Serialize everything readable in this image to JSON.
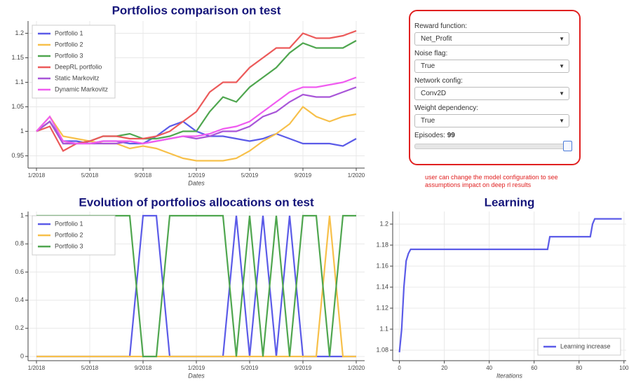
{
  "chart_data": [
    {
      "type": "line",
      "title": "Portfolios comparison on test",
      "xlabel": "Dates",
      "x": [
        "1/2018",
        "2/2018",
        "3/2018",
        "4/2018",
        "5/2018",
        "6/2018",
        "7/2018",
        "8/2018",
        "9/2018",
        "10/2018",
        "11/2018",
        "12/2018",
        "1/2019",
        "2/2019",
        "3/2019",
        "4/2019",
        "5/2019",
        "6/2019",
        "7/2019",
        "8/2019",
        "9/2019",
        "10/2019",
        "11/2019",
        "12/2019",
        "1/2020"
      ],
      "xticks": [
        "1/2018",
        "5/2018",
        "9/2018",
        "1/2019",
        "5/2019",
        "9/2019",
        "1/2020"
      ],
      "ylim": [
        0.925,
        1.225
      ],
      "yticks": [
        0.95,
        1,
        1.05,
        1.1,
        1.15,
        1.2
      ],
      "grid": true,
      "legend": "top-left",
      "series": [
        {
          "name": "Portfolio 1",
          "color": "#5b5be8",
          "values": [
            1.0,
            1.02,
            0.98,
            0.98,
            0.975,
            0.98,
            0.98,
            0.975,
            0.975,
            0.99,
            1.01,
            1.02,
            1.0,
            0.99,
            0.99,
            0.985,
            0.98,
            0.985,
            0.995,
            0.985,
            0.975,
            0.975,
            0.975,
            0.97,
            0.985
          ]
        },
        {
          "name": "Portfolio 2",
          "color": "#f7c04a",
          "values": [
            1.0,
            1.03,
            0.99,
            0.985,
            0.98,
            0.975,
            0.975,
            0.965,
            0.97,
            0.965,
            0.955,
            0.945,
            0.94,
            0.94,
            0.94,
            0.945,
            0.96,
            0.98,
            0.995,
            1.015,
            1.05,
            1.03,
            1.02,
            1.03,
            1.035
          ]
        },
        {
          "name": "Portfolio 3",
          "color": "#4fa64f",
          "values": [
            1.0,
            1.02,
            0.975,
            0.975,
            0.98,
            0.99,
            0.99,
            0.995,
            0.985,
            0.985,
            0.99,
            1.0,
            1.0,
            1.04,
            1.07,
            1.06,
            1.09,
            1.11,
            1.13,
            1.16,
            1.18,
            1.17,
            1.17,
            1.17,
            1.185
          ]
        },
        {
          "name": "DeepRL portfolio",
          "color": "#ec5a5a",
          "values": [
            1.0,
            1.01,
            0.96,
            0.975,
            0.98,
            0.99,
            0.99,
            0.985,
            0.985,
            0.99,
            1.0,
            1.02,
            1.04,
            1.08,
            1.1,
            1.1,
            1.13,
            1.15,
            1.17,
            1.17,
            1.2,
            1.19,
            1.19,
            1.195,
            1.205
          ]
        },
        {
          "name": "Static Markovitz",
          "color": "#a855d8",
          "values": [
            1.0,
            1.02,
            0.975,
            0.975,
            0.975,
            0.975,
            0.975,
            0.98,
            0.975,
            0.98,
            0.985,
            0.99,
            0.985,
            0.99,
            1.0,
            1.0,
            1.01,
            1.03,
            1.04,
            1.06,
            1.075,
            1.07,
            1.07,
            1.08,
            1.09
          ]
        },
        {
          "name": "Dynamic Markovitz",
          "color": "#f05cf0",
          "values": [
            1.0,
            1.03,
            0.98,
            0.975,
            0.975,
            0.98,
            0.98,
            0.98,
            0.975,
            0.98,
            0.985,
            0.99,
            0.99,
            0.995,
            1.005,
            1.01,
            1.02,
            1.04,
            1.06,
            1.08,
            1.09,
            1.09,
            1.095,
            1.1,
            1.11
          ]
        }
      ]
    },
    {
      "type": "line",
      "title": "Evolution of portfolios allocations on test",
      "xlabel": "Dates",
      "x": [
        "1/2018",
        "2/2018",
        "3/2018",
        "4/2018",
        "5/2018",
        "6/2018",
        "7/2018",
        "8/2018",
        "9/2018",
        "10/2018",
        "11/2018",
        "12/2018",
        "1/2019",
        "2/2019",
        "3/2019",
        "4/2019",
        "5/2019",
        "6/2019",
        "7/2019",
        "8/2019",
        "9/2019",
        "10/2019",
        "11/2019",
        "12/2019",
        "1/2020"
      ],
      "xticks": [
        "1/2018",
        "5/2018",
        "9/2018",
        "1/2019",
        "5/2019",
        "9/2019",
        "1/2020"
      ],
      "ylim": [
        -0.03,
        1.03
      ],
      "yticks": [
        0,
        0.2,
        0.4,
        0.6,
        0.8,
        1
      ],
      "grid": true,
      "legend": "top-left",
      "series": [
        {
          "name": "Portfolio 1",
          "color": "#5b5be8",
          "values": [
            0,
            0,
            0,
            0,
            0,
            0,
            0,
            0,
            1,
            1,
            0,
            0,
            0,
            0,
            0,
            1,
            0,
            1,
            0,
            1,
            0,
            0,
            0,
            0,
            0
          ]
        },
        {
          "name": "Portfolio 2",
          "color": "#f7c04a",
          "values": [
            0,
            0,
            0,
            0,
            0,
            0,
            0,
            0,
            0,
            0,
            0,
            0,
            0,
            0,
            0,
            0,
            0,
            0,
            0,
            0,
            0,
            0,
            1,
            0,
            0
          ]
        },
        {
          "name": "Portfolio 3",
          "color": "#4fa64f",
          "values": [
            1,
            1,
            1,
            1,
            1,
            1,
            1,
            1,
            0,
            0,
            1,
            1,
            1,
            1,
            1,
            0,
            1,
            0,
            1,
            0,
            1,
            1,
            0,
            1,
            1
          ]
        }
      ]
    },
    {
      "type": "line",
      "title": "Learning",
      "xlabel": "Iterations",
      "x": [
        0,
        1,
        2,
        3,
        4,
        5,
        66,
        67,
        85,
        86,
        87,
        99
      ],
      "xlim": [
        -3,
        101
      ],
      "xticks": [
        0,
        20,
        40,
        60,
        80,
        100
      ],
      "ylim": [
        1.07,
        1.212
      ],
      "yticks": [
        1.08,
        1.1,
        1.12,
        1.14,
        1.16,
        1.18,
        1.2
      ],
      "grid": true,
      "legend": "bottom-right",
      "series": [
        {
          "name": "Learning increase",
          "color": "#5b5be8",
          "values": [
            1.078,
            1.1,
            1.14,
            1.165,
            1.172,
            1.176,
            1.176,
            1.188,
            1.188,
            1.2,
            1.205,
            1.205
          ]
        }
      ]
    }
  ],
  "controls": {
    "fields": [
      {
        "label": "Reward function:",
        "value": "Net_Profit"
      },
      {
        "label": "Noise flag:",
        "value": "True"
      },
      {
        "label": "Network config:",
        "value": "Conv2D"
      },
      {
        "label": "Weight dependency:",
        "value": "True"
      }
    ],
    "slider": {
      "label": "Episodes:",
      "value": 99
    },
    "note": "user can change the model configuration to see assumptions impact on deep rl results"
  }
}
